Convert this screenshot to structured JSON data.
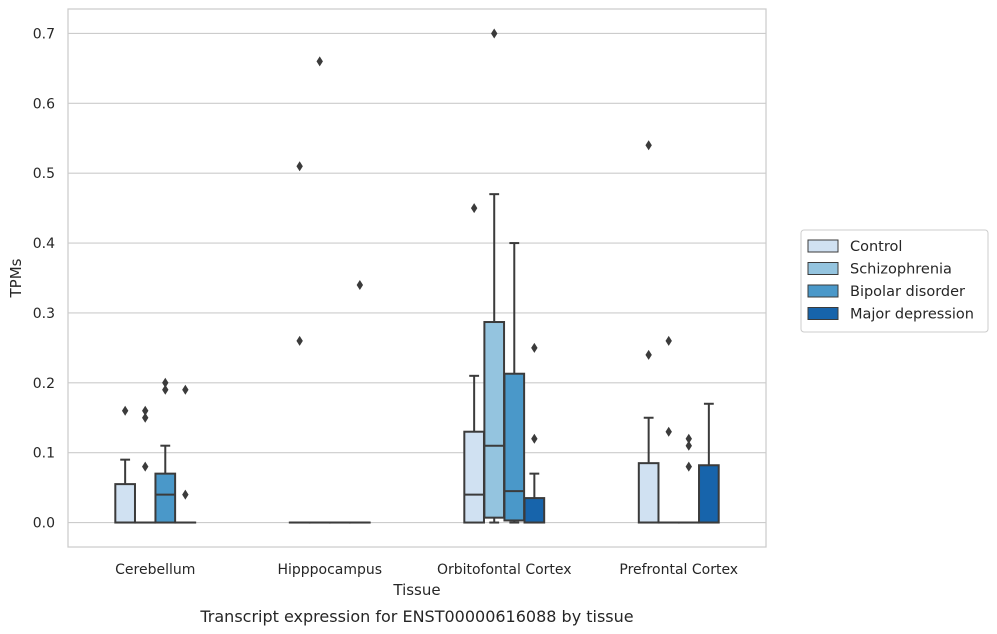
{
  "caption": "Transcript expression for ENST00000616088 by tissue",
  "chart_data": {
    "type": "box",
    "xlabel": "Tissue",
    "ylabel": "TPMs",
    "ylim": [
      -0.035,
      0.735
    ],
    "yticks": [
      "0.0",
      "0.1",
      "0.2",
      "0.3",
      "0.4",
      "0.5",
      "0.6",
      "0.7"
    ],
    "grid": "horizontal",
    "legend_position": "right",
    "categories": [
      "Cerebellum",
      "Hipppocampus",
      "Orbitofontal Cortex",
      "Prefrontal Cortex"
    ],
    "series": [
      {
        "name": "Control",
        "color": "#d0e1f2",
        "boxes": [
          {
            "whisker_low": 0,
            "q1": 0,
            "median": 0,
            "q3": 0.055,
            "whisker_high": 0.09,
            "outliers": [
              0.16
            ]
          },
          {
            "whisker_low": 0,
            "q1": 0,
            "median": 0,
            "q3": 0,
            "whisker_high": 0,
            "outliers": [
              0.26,
              0.51
            ]
          },
          {
            "whisker_low": 0,
            "q1": 0,
            "median": 0.04,
            "q3": 0.13,
            "whisker_high": 0.21,
            "outliers": [
              0.45
            ]
          },
          {
            "whisker_low": 0,
            "q1": 0,
            "median": 0,
            "q3": 0.085,
            "whisker_high": 0.15,
            "outliers": [
              0.24,
              0.54
            ]
          }
        ]
      },
      {
        "name": "Schizophrenia",
        "color": "#94c4df",
        "boxes": [
          {
            "whisker_low": 0,
            "q1": 0,
            "median": 0,
            "q3": 0,
            "whisker_high": 0,
            "outliers": [
              0.08,
              0.15,
              0.16
            ]
          },
          {
            "whisker_low": 0,
            "q1": 0,
            "median": 0,
            "q3": 0,
            "whisker_high": 0,
            "outliers": [
              0.66
            ]
          },
          {
            "whisker_low": 0,
            "q1": 0.007,
            "median": 0.11,
            "q3": 0.287,
            "whisker_high": 0.47,
            "outliers": [
              0.7
            ]
          },
          {
            "whisker_low": 0,
            "q1": 0,
            "median": 0,
            "q3": 0,
            "whisker_high": 0,
            "outliers": [
              0.13,
              0.26
            ]
          }
        ]
      },
      {
        "name": "Bipolar disorder",
        "color": "#4a98c9",
        "boxes": [
          {
            "whisker_low": 0,
            "q1": 0,
            "median": 0.04,
            "q3": 0.07,
            "whisker_high": 0.11,
            "outliers": [
              0.19,
              0.2
            ]
          },
          {
            "whisker_low": 0,
            "q1": 0,
            "median": 0,
            "q3": 0,
            "whisker_high": 0,
            "outliers": []
          },
          {
            "whisker_low": 0,
            "q1": 0.003,
            "median": 0.045,
            "q3": 0.213,
            "whisker_high": 0.4,
            "outliers": []
          },
          {
            "whisker_low": 0,
            "q1": 0,
            "median": 0,
            "q3": 0,
            "whisker_high": 0,
            "outliers": [
              0.08,
              0.11,
              0.12
            ]
          }
        ]
      },
      {
        "name": "Major depression",
        "color": "#1764ab",
        "boxes": [
          {
            "whisker_low": 0,
            "q1": 0,
            "median": 0,
            "q3": 0,
            "whisker_high": 0,
            "outliers": [
              0.04,
              0.19
            ]
          },
          {
            "whisker_low": 0,
            "q1": 0,
            "median": 0,
            "q3": 0,
            "whisker_high": 0,
            "outliers": [
              0.34
            ]
          },
          {
            "whisker_low": 0,
            "q1": 0,
            "median": 0,
            "q3": 0.035,
            "whisker_high": 0.07,
            "outliers": [
              0.12,
              0.25
            ]
          },
          {
            "whisker_low": 0,
            "q1": 0,
            "median": 0,
            "q3": 0.082,
            "whisker_high": 0.17,
            "outliers": []
          }
        ]
      }
    ]
  }
}
